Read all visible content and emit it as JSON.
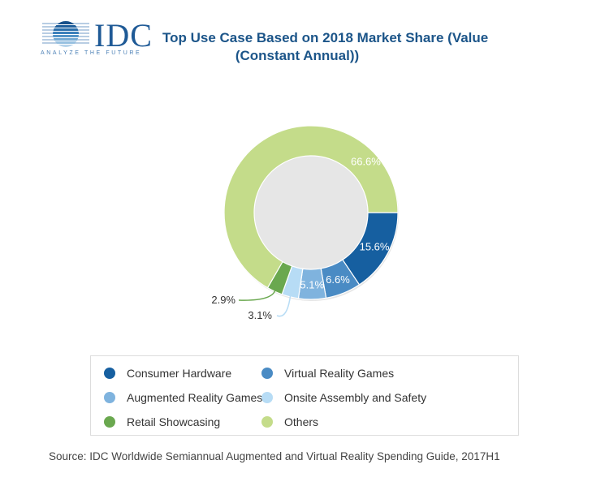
{
  "logo": {
    "text": "IDC",
    "tagline": "ANALYZE THE FUTURE",
    "color": "#1f5a96"
  },
  "header": {
    "title_line1": "Top Use Case Based on 2018 Market Share (Value",
    "title_line2": "(Constant Annual))"
  },
  "chart_data": {
    "type": "pie",
    "variant": "donut",
    "title": "Top Use Case Based on 2018 Market Share (Value (Constant Annual))",
    "start": "3 o'clock, clockwise",
    "categories": [
      "Consumer Hardware",
      "Virtual Reality Games",
      "Augmented Reality Games",
      "Onsite Assembly and Safety",
      "Retail Showcasing",
      "Others"
    ],
    "values": [
      15.6,
      6.6,
      5.1,
      3.1,
      2.9,
      66.6
    ],
    "labels": [
      "15.6%",
      "6.6%",
      "5.1%",
      "3.1%",
      "2.9%",
      "66.6%"
    ],
    "colors": [
      "#165fa0",
      "#4a8bc4",
      "#7fb3de",
      "#b7dcf5",
      "#6aa84f",
      "#c4dc8a"
    ],
    "legend_position": "bottom"
  },
  "legend": {
    "items": [
      {
        "label": "Consumer Hardware",
        "color": "#165fa0"
      },
      {
        "label": "Virtual Reality Games",
        "color": "#4a8bc4"
      },
      {
        "label": "Augmented Reality Games",
        "color": "#7fb3de"
      },
      {
        "label": "Onsite Assembly and Safety",
        "color": "#b7dcf5"
      },
      {
        "label": "Retail Showcasing",
        "color": "#6aa84f"
      },
      {
        "label": "Others",
        "color": "#c4dc8a"
      }
    ]
  },
  "footer": {
    "source": "Source: IDC Worldwide Semiannual Augmented and Virtual Reality Spending Guide, 2017H1"
  }
}
